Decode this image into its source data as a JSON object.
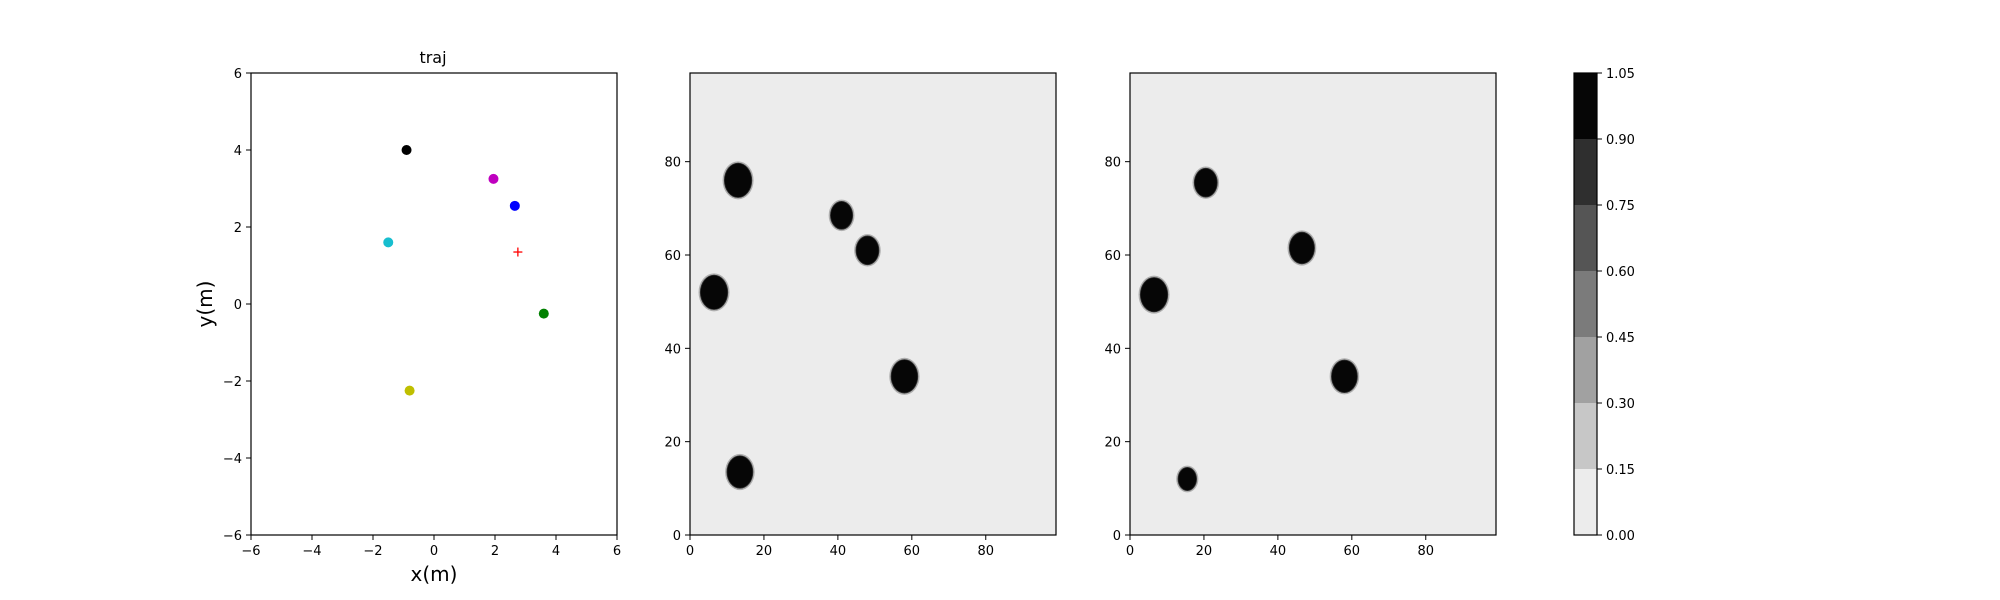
{
  "chart_data": [
    {
      "type": "scatter",
      "title": "traj",
      "xlabel": "x(m)",
      "ylabel": "y(m)",
      "xlim": [
        -6,
        6
      ],
      "ylim": [
        -6,
        6
      ],
      "xticks": [
        "−6",
        "−4",
        "−2",
        "0",
        "2",
        "4",
        "6"
      ],
      "yticks": [
        "−6",
        "−4",
        "−2",
        "0",
        "2",
        "4",
        "6"
      ],
      "grid": false,
      "points": [
        {
          "x": -0.9,
          "y": 4.0,
          "color": "#000000",
          "marker": "circle"
        },
        {
          "x": 1.95,
          "y": 3.25,
          "color": "#bf00bf",
          "marker": "circle"
        },
        {
          "x": 2.65,
          "y": 2.55,
          "color": "#0000ff",
          "marker": "circle"
        },
        {
          "x": -1.5,
          "y": 1.6,
          "color": "#17becf",
          "marker": "circle"
        },
        {
          "x": 2.75,
          "y": 1.35,
          "color": "#ff0000",
          "marker": "plus"
        },
        {
          "x": 3.6,
          "y": -0.25,
          "color": "#008000",
          "marker": "circle"
        },
        {
          "x": -0.8,
          "y": -2.25,
          "color": "#bfbf00",
          "marker": "circle"
        }
      ]
    },
    {
      "type": "heatmap",
      "xlim": [
        0,
        99
      ],
      "ylim": [
        0,
        99
      ],
      "xticks": [
        "0",
        "20",
        "40",
        "60",
        "80"
      ],
      "yticks": [
        "0",
        "20",
        "40",
        "60",
        "80"
      ],
      "background_value": 0.07,
      "blobs": [
        {
          "x": 13,
          "y": 76,
          "radius": 3.6
        },
        {
          "x": 41,
          "y": 68.5,
          "radius": 2.9
        },
        {
          "x": 48,
          "y": 61,
          "radius": 3.0
        },
        {
          "x": 6.5,
          "y": 52,
          "radius": 3.6
        },
        {
          "x": 58,
          "y": 34,
          "radius": 3.5
        },
        {
          "x": 13.5,
          "y": 13.5,
          "radius": 3.4
        }
      ]
    },
    {
      "type": "heatmap",
      "xlim": [
        0,
        99
      ],
      "ylim": [
        0,
        99
      ],
      "xticks": [
        "0",
        "20",
        "40",
        "60",
        "80"
      ],
      "yticks": [
        "0",
        "20",
        "40",
        "60",
        "80"
      ],
      "background_value": 0.07,
      "blobs": [
        {
          "x": 20.5,
          "y": 75.5,
          "radius": 3.0
        },
        {
          "x": 46.5,
          "y": 61.5,
          "radius": 3.3
        },
        {
          "x": 6.5,
          "y": 51.5,
          "radius": 3.6
        },
        {
          "x": 58,
          "y": 34,
          "radius": 3.4
        },
        {
          "x": 15.5,
          "y": 12,
          "radius": 2.4
        }
      ]
    }
  ],
  "colorbar": {
    "levels": [
      0.0,
      0.15,
      0.3,
      0.45,
      0.6,
      0.75,
      0.9,
      1.05
    ],
    "tick_labels": [
      "0.00",
      "0.15",
      "0.30",
      "0.45",
      "0.60",
      "0.75",
      "0.90",
      "1.05"
    ],
    "band_colors": [
      "#ececec",
      "#c7c7c7",
      "#a1a1a1",
      "#7b7b7b",
      "#555555",
      "#2f2f2f",
      "#060606"
    ]
  }
}
